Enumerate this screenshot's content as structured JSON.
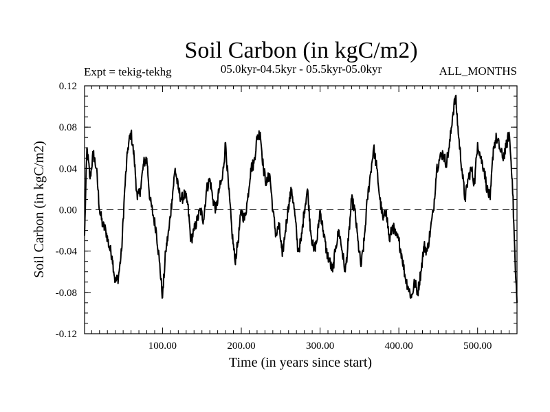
{
  "chart_data": {
    "type": "line",
    "title": "Soil Carbon (in kgC/m2)",
    "subtitle": "05.0kyr-04.5kyr - 05.5kyr-05.0kyr",
    "left_label": "Expt = tekig-tekhg",
    "right_label": "ALL_MONTHS",
    "xlabel": "Time (in years since start)",
    "ylabel": "Soil Carbon (in kgC/m2)",
    "xlim": [
      1,
      550
    ],
    "ylim": [
      -0.12,
      0.12
    ],
    "xticks": [
      100,
      200,
      300,
      400,
      500
    ],
    "xtick_labels": [
      "100.00",
      "200.00",
      "300.00",
      "400.00",
      "500.00"
    ],
    "yticks": [
      0.12,
      0.08,
      0.04,
      0.0,
      -0.04,
      -0.08,
      -0.12
    ],
    "ytick_labels": [
      "0.12",
      "0.08",
      "0.04",
      "0.00",
      "-0.04",
      "-0.08",
      "-0.12"
    ],
    "zero_line": "dashed",
    "series": [
      {
        "name": "Soil Carbon",
        "color": "#000000",
        "x": [
          1,
          4,
          8,
          12,
          16,
          20,
          24,
          28,
          32,
          36,
          40,
          44,
          48,
          52,
          56,
          60,
          64,
          68,
          72,
          76,
          80,
          84,
          88,
          92,
          96,
          100,
          104,
          108,
          112,
          116,
          120,
          124,
          128,
          132,
          136,
          140,
          144,
          148,
          152,
          156,
          160,
          164,
          168,
          172,
          176,
          180,
          184,
          188,
          192,
          196,
          200,
          204,
          208,
          212,
          216,
          220,
          224,
          228,
          232,
          236,
          240,
          244,
          248,
          252,
          256,
          260,
          264,
          268,
          272,
          276,
          280,
          284,
          288,
          292,
          296,
          300,
          304,
          308,
          312,
          316,
          320,
          324,
          328,
          332,
          336,
          340,
          344,
          348,
          352,
          356,
          360,
          364,
          368,
          372,
          376,
          380,
          384,
          388,
          392,
          396,
          400,
          404,
          408,
          412,
          416,
          420,
          424,
          428,
          432,
          436,
          440,
          444,
          448,
          452,
          456,
          460,
          464,
          468,
          472,
          476,
          480,
          484,
          488,
          492,
          496,
          500,
          504,
          508,
          512,
          516,
          520,
          524,
          528,
          532,
          536,
          540,
          544,
          548,
          550
        ],
        "y": [
          -0.025,
          0.06,
          0.03,
          0.055,
          0.04,
          0.0,
          -0.015,
          -0.02,
          -0.035,
          -0.045,
          -0.07,
          -0.065,
          -0.04,
          0.02,
          0.06,
          0.075,
          0.05,
          0.01,
          0.02,
          0.045,
          0.05,
          0.01,
          -0.005,
          -0.02,
          -0.05,
          -0.085,
          -0.04,
          -0.02,
          0.01,
          0.04,
          0.02,
          0.01,
          0.015,
          0.005,
          -0.03,
          -0.02,
          -0.01,
          0.0,
          -0.01,
          0.02,
          0.03,
          0.01,
          0.0,
          0.02,
          0.03,
          0.065,
          0.02,
          -0.02,
          -0.05,
          -0.03,
          0.0,
          -0.01,
          0.01,
          0.04,
          0.045,
          0.07,
          0.075,
          0.04,
          0.025,
          0.035,
          0.0,
          -0.025,
          -0.015,
          -0.045,
          -0.02,
          0.005,
          0.02,
          -0.005,
          -0.04,
          -0.03,
          0.0,
          0.02,
          -0.02,
          -0.04,
          -0.03,
          0.0,
          -0.02,
          -0.04,
          -0.05,
          -0.06,
          -0.035,
          -0.02,
          -0.04,
          -0.06,
          -0.03,
          0.01,
          0.0,
          -0.03,
          -0.055,
          -0.03,
          0.01,
          0.035,
          0.06,
          0.04,
          0.01,
          -0.01,
          0.0,
          -0.03,
          -0.015,
          -0.025,
          -0.03,
          -0.045,
          -0.065,
          -0.075,
          -0.085,
          -0.07,
          -0.08,
          -0.06,
          -0.035,
          -0.04,
          -0.02,
          0.0,
          0.04,
          0.05,
          0.055,
          0.045,
          0.06,
          0.09,
          0.11,
          0.07,
          0.04,
          0.01,
          0.03,
          0.04,
          0.025,
          0.065,
          0.05,
          0.04,
          0.02,
          0.01,
          0.06,
          0.07,
          0.06,
          0.05,
          0.06,
          0.075,
          0.03,
          -0.06,
          -0.09
        ]
      }
    ]
  }
}
